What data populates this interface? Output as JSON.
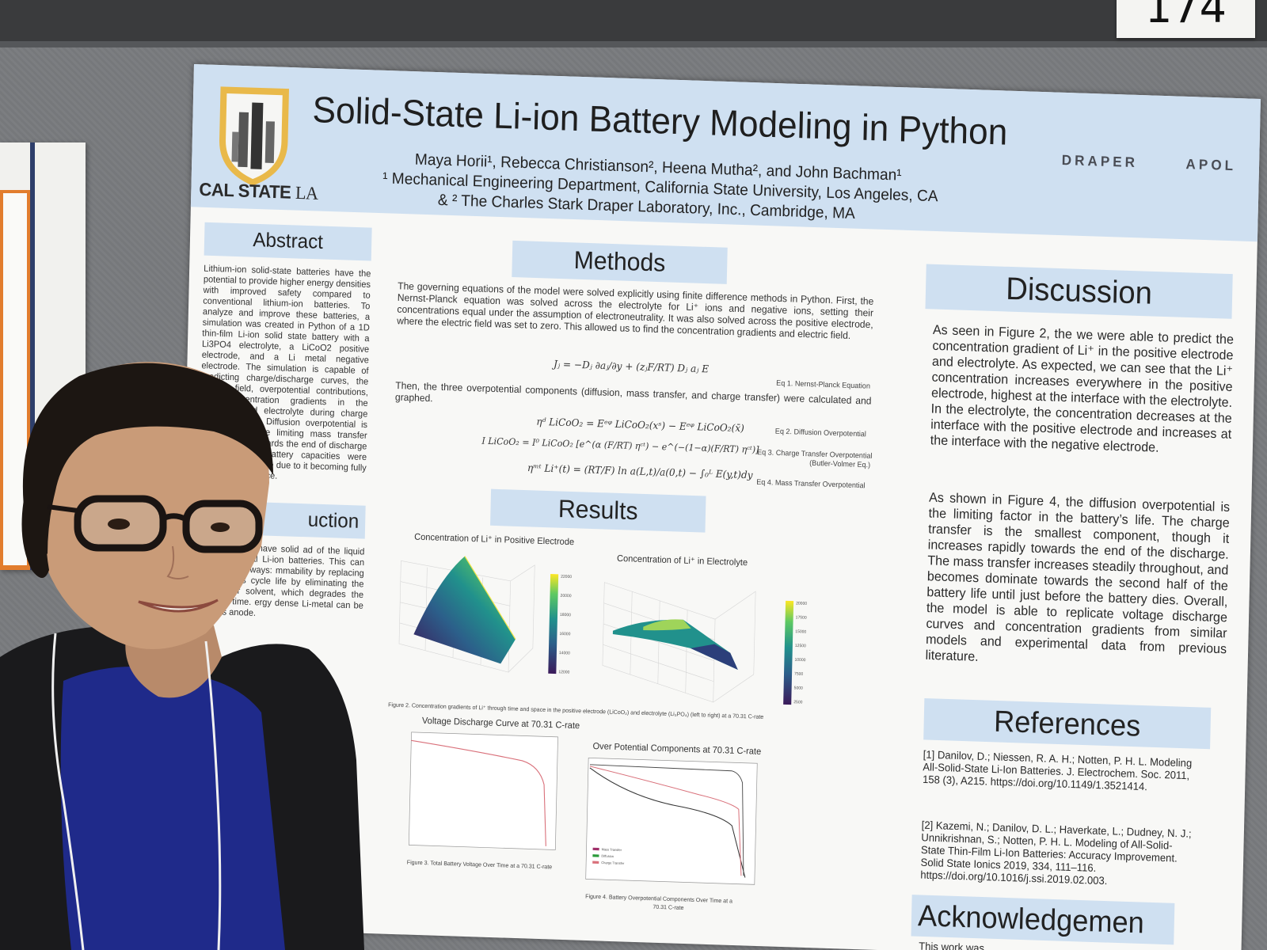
{
  "booth_number": "174",
  "poster": {
    "title": "Solid-State Li-ion Battery Modeling in Python",
    "authors": "Maya Horii¹, Rebecca Christianson², Heena Mutha², and John Bachman¹",
    "affiliation_1": "¹ Mechanical Engineering Department, California State University, Los Angeles, CA",
    "affiliation_2": "& ² The Charles Stark Draper Laboratory, Inc., Cambridge, MA",
    "logo_text": "CAL STATE",
    "logo_text_suffix": "LA",
    "sponsor_1": "DRAPER",
    "sponsor_2": "APOL",
    "abstract": {
      "heading": "Abstract",
      "text": "Lithium-ion solid-state batteries have the potential to provide higher energy densities with improved safety compared to conventional lithium-ion batteries. To analyze and improve these batteries, a simulation was created in Python of a 1D thin-film Li-ion solid state battery with a Li3PO4 electrolyte, a LiCoO2 positive electrode, and a Li metal negative electrode. The simulation is capable of predicting charge/discharge curves, the electric field, overpotential contributions, and concentration gradients in the electrode and electrolyte during charge and discharge. Diffusion overpotential is found to be the limiting mass transfer overpotential towards the end of discharge at a reduced battery capacities were overpotential in the due to it becoming fully electrolyte interface."
    },
    "introduction": {
      "heading": "uction",
      "text": "state batteries have solid ad of the liquid electrolytes nal Li-ion batteries. This can tery in many ways: mmability by replacing flammable s cycle life by eliminating the need for r solvent, which degrades the battery r time. ergy dense Li-metal can be used as anode."
    },
    "methods": {
      "heading": "Methods",
      "text_1": "The governing equations of the model were solved explicitly using finite difference methods in Python. First, the Nernst-Planck equation was solved across the electrolyte for Li⁺ ions and negative ions, setting their concentrations equal under the assumption of electroneutrality. It was also solved across the positive electrode, where the electric field was set to zero. This allowed us to find the concentration gradients and electric field.",
      "text_2": "Then, the three overpotential components (diffusion, mass transfer, and charge transfer) were calculated and graphed.",
      "eq1": "Jⱼ = −Dⱼ ∂aⱼ/∂y + (zⱼF/RT) Dⱼ aⱼ E",
      "eq1_label": "Eq 1. Nernst-Planck Equation",
      "eq2": "ηᵈ LiCoO₂ = Eᵉᵠ LiCoO₂(xˢ) − Eᵉᵠ LiCoO₂(x̄)",
      "eq2_label": "Eq 2. Diffusion Overpotential",
      "eq3": "I LiCoO₂ = I⁰ LiCoO₂ [e^(α (F/RT) ηᶜᵗ) − e^(−(1−α)(F/RT) ηᶜᵗ)]",
      "eq3_label": "Eq 3. Charge Transfer Overpotential",
      "eq3_label_2": "(Butler-Volmer Eq.)",
      "eq4": "ηᵐᵗ Li⁺(t) = (RT/F) ln a(L,t)/a(0,t) − ∫₀ᴸ E(y,t)dy",
      "eq4_label": "Eq 4. Mass Transfer Overpotential"
    },
    "results": {
      "heading": "Results",
      "fig1_title": "Concentration of Li⁺ in Positive Electrode",
      "fig2_title": "Concentration of Li⁺ in Electrolyte",
      "fig2_caption": "Figure 2. Concentration gradients of Li⁺ through time and space in the positive electrode (LiCoO₂) and electrolyte (Li₃PO₄) (left to right) at a 70.31 C-rate",
      "fig3_title": "Voltage Discharge Curve at 70.31 C-rate",
      "fig3_caption": "Figure 3. Total Battery Voltage Over Time at a 70.31 C-rate",
      "fig4_title": "Over Potential Components at 70.31 C-rate",
      "fig4_caption": "Figure 4. Battery Overpotential Components Over Time at a",
      "fig4_caption_2": "70.31 C-rate",
      "fig4_legend": [
        "Mass Transfer",
        "Diffusion",
        "Charge Transfer"
      ],
      "cbar1_ticks": [
        "22000",
        "20000",
        "18000",
        "16000",
        "14000",
        "12000"
      ],
      "cbar2_ticks": [
        "20000",
        "17500",
        "15000",
        "12500",
        "10000",
        "7500",
        "5000",
        "2500"
      ]
    },
    "discussion": {
      "heading": "Discussion",
      "para_1": "As seen in Figure 2, the we were able to predict the concentration gradient of Li⁺ in the positive electrode and electrolyte. As expected, we can see that the Li⁺ concentration increases everywhere in the positive electrode, highest at the interface with the electrolyte. In the electrolyte, the concentration decreases at the interface with the positive electrode and increases at the interface with the negative electrode.",
      "para_2": "As shown in Figure 4, the diffusion overpotential is the limiting factor in the battery’s life. The charge transfer is the smallest component, though it increases rapidly towards the end of the discharge. The mass transfer increases steadily throughout, and becomes dominate towards the second half of the battery life until just before the battery dies. Overall, the model is able to replicate voltage discharge curves and concentration gradients from similar models and experimental data from previous literature."
    },
    "references": {
      "heading": "References",
      "ref_1": "[1]  Danilov, D.; Niessen, R. A. H.; Notten, P. H. L. Modeling All-Solid-State Li-Ion Batteries. J. Electrochem. Soc. 2011, 158 (3), A215. https://doi.org/10.1149/1.3521414.",
      "ref_2": "[2]  Kazemi, N.; Danilov, D. L.; Haverkate, L.; Dudney, N. J.; Unnikrishnan, S.; Notten, P. H. L. Modeling of All-Solid-State Thin-Film Li-Ion Batteries: Accuracy Improvement. Solid State Ionics 2019, 334, 111–116. https://doi.org/10.1016/j.ssi.2019.02.003."
    },
    "acknowledgements": {
      "heading": "Acknowledgemen",
      "text": "This work was collaborati"
    }
  },
  "colors": {
    "header_blue": "#cfe0f1",
    "poster_bg": "#f8f8f6",
    "felt": "#7a7c7f",
    "sweater": "#1a1a1c",
    "blouse": "#1f2a8a",
    "lanyard": "#f0f0f0",
    "viridis_dark": "#3b1a5a",
    "viridis_teal": "#21918c",
    "viridis_yellow": "#fde725",
    "curve_red": "#d9707a"
  }
}
